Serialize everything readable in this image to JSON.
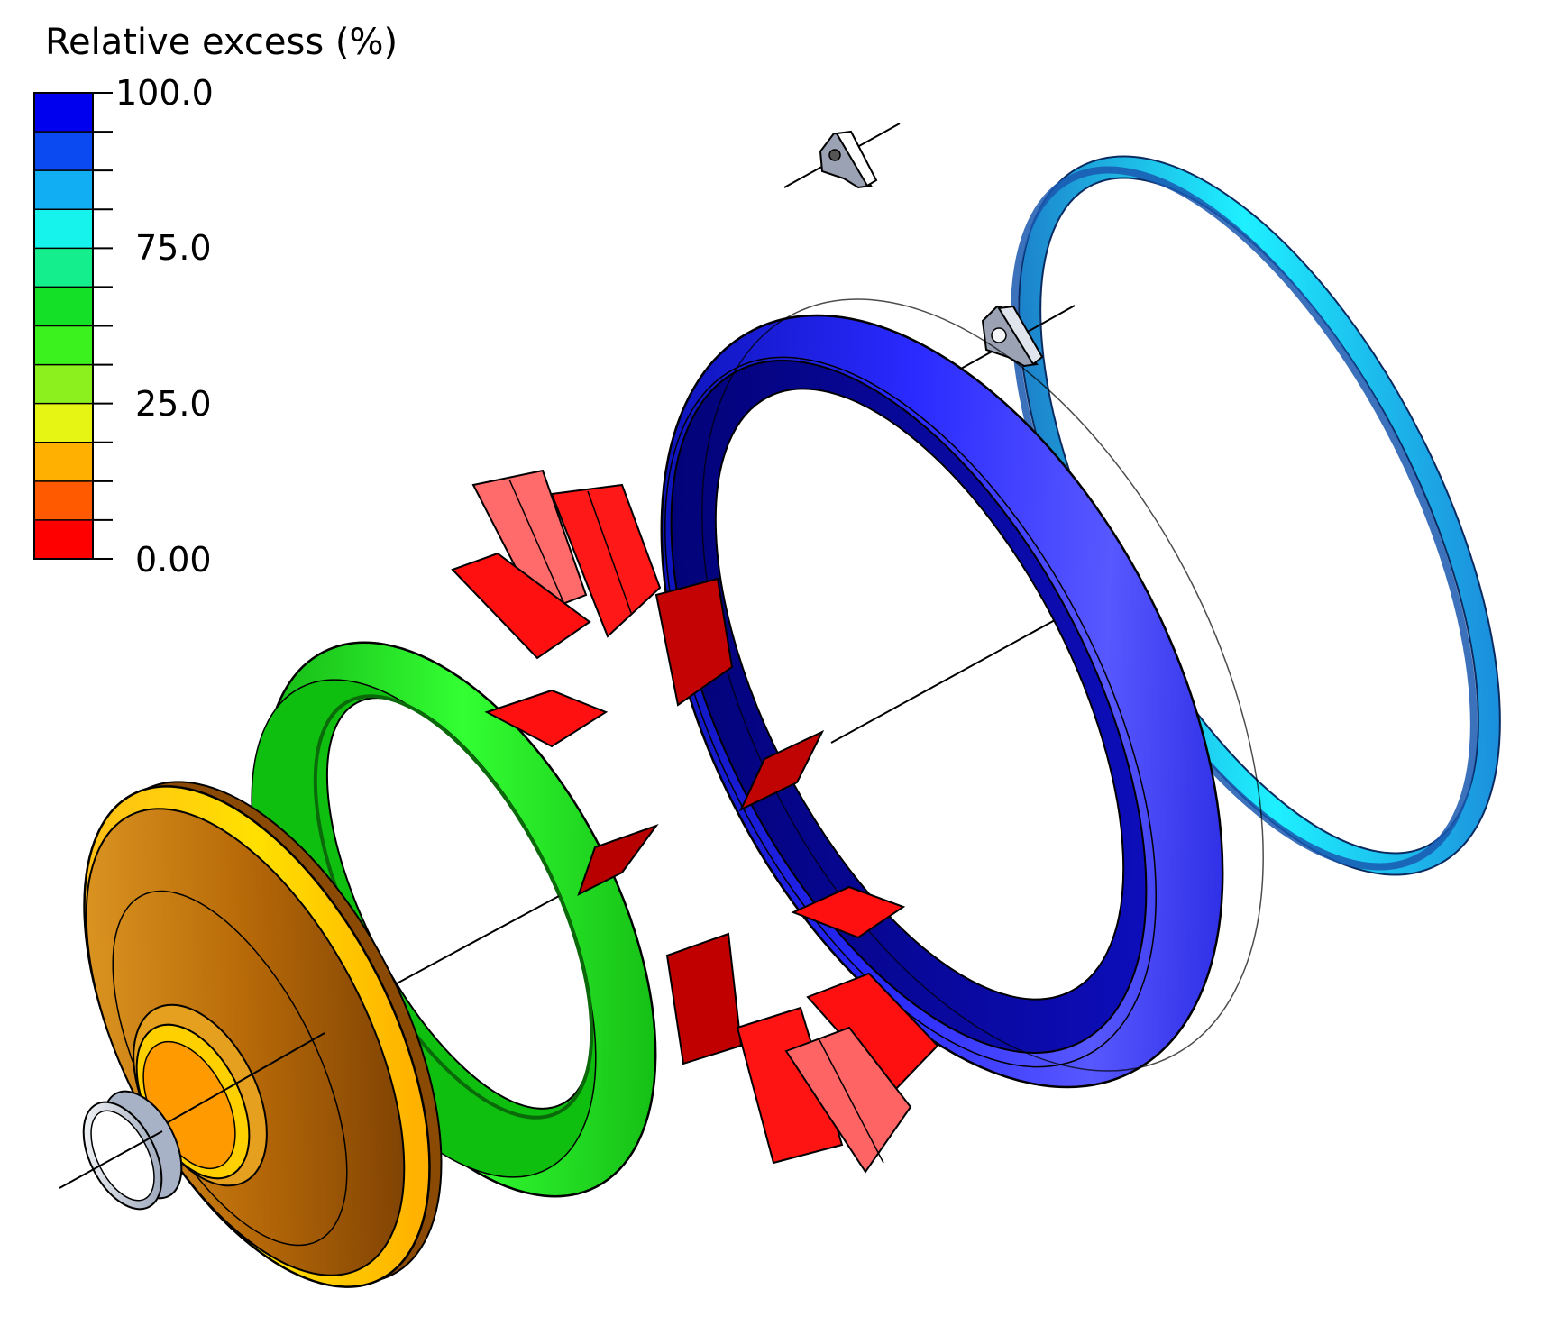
{
  "legend": {
    "title": "Relative excess (%)",
    "tick_labels": [
      "100.0",
      "75.0",
      "25.0",
      "0.00"
    ],
    "bands": [
      "#0000ee",
      "#0a4af0",
      "#12aef4",
      "#16f2ec",
      "#14ee8c",
      "#14e028",
      "#3cf21e",
      "#8cf01e",
      "#e6f514",
      "#ffb000",
      "#ff5a00",
      "#ff0000"
    ]
  },
  "parts": {
    "nozzle-ring": {
      "color": "#e8eef6"
    },
    "cone-hub": {
      "color": "#e6a020"
    },
    "green-ring": {
      "color": "#14e014"
    },
    "blades": {
      "color": "#ff1010"
    },
    "blue-shroud": {
      "color": "#1414f0"
    },
    "cyan-ring": {
      "color": "#18c8f8"
    },
    "brackets": {
      "color": "#c8ccd6"
    }
  }
}
